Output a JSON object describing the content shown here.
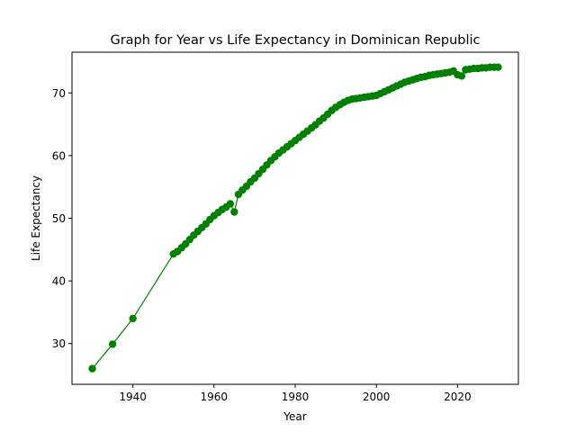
{
  "chart_data": {
    "type": "line",
    "title": "Graph for Year vs Life Expectancy in Dominican Republic",
    "xlabel": "Year",
    "ylabel": "Life Expectancy",
    "xlim": [
      1925,
      2035
    ],
    "ylim": [
      23.5,
      76.5
    ],
    "xticks": [
      1940,
      1960,
      1980,
      2000,
      2020
    ],
    "yticks": [
      30,
      40,
      50,
      60,
      70
    ],
    "grid": false,
    "color": "#008000",
    "series": [
      {
        "x": [
          1930,
          1935,
          1940,
          1950,
          1951,
          1952,
          1953,
          1954,
          1955,
          1956,
          1957,
          1958,
          1959,
          1960,
          1961,
          1962,
          1963,
          1964,
          1965,
          1966,
          1967,
          1968,
          1969,
          1970,
          1971,
          1972,
          1973,
          1974,
          1975,
          1976,
          1977,
          1978,
          1979,
          1980,
          1981,
          1982,
          1983,
          1984,
          1985,
          1986,
          1987,
          1988,
          1989,
          1990,
          1991,
          1992,
          1993,
          1994,
          1995,
          1996,
          1997,
          1998,
          1999,
          2000,
          2001,
          2002,
          2003,
          2004,
          2005,
          2006,
          2007,
          2008,
          2009,
          2010,
          2011,
          2012,
          2013,
          2014,
          2015,
          2016,
          2017,
          2018,
          2019,
          2020,
          2021,
          2022,
          2023,
          2024,
          2025,
          2026,
          2027,
          2028,
          2029,
          2030
        ],
        "y": [
          26.0,
          29.9,
          34.0,
          44.3,
          44.7,
          45.3,
          45.9,
          46.6,
          47.3,
          47.9,
          48.5,
          49.1,
          49.8,
          50.4,
          50.9,
          51.4,
          51.8,
          52.3,
          51.0,
          53.8,
          54.5,
          55.1,
          55.8,
          56.4,
          57.1,
          57.8,
          58.5,
          59.2,
          59.8,
          60.4,
          60.9,
          61.4,
          61.9,
          62.4,
          62.9,
          63.4,
          63.9,
          64.4,
          64.9,
          65.5,
          66.0,
          66.6,
          67.2,
          67.7,
          68.1,
          68.5,
          68.8,
          69.0,
          69.1,
          69.2,
          69.3,
          69.4,
          69.5,
          69.6,
          69.9,
          70.2,
          70.5,
          70.8,
          71.1,
          71.4,
          71.7,
          71.9,
          72.1,
          72.3,
          72.5,
          72.6,
          72.8,
          72.9,
          73.0,
          73.1,
          73.2,
          73.3,
          73.5,
          72.9,
          72.7,
          73.7,
          73.8,
          73.9,
          73.9,
          74.0,
          74.0,
          74.1,
          74.1,
          74.1
        ]
      }
    ]
  }
}
